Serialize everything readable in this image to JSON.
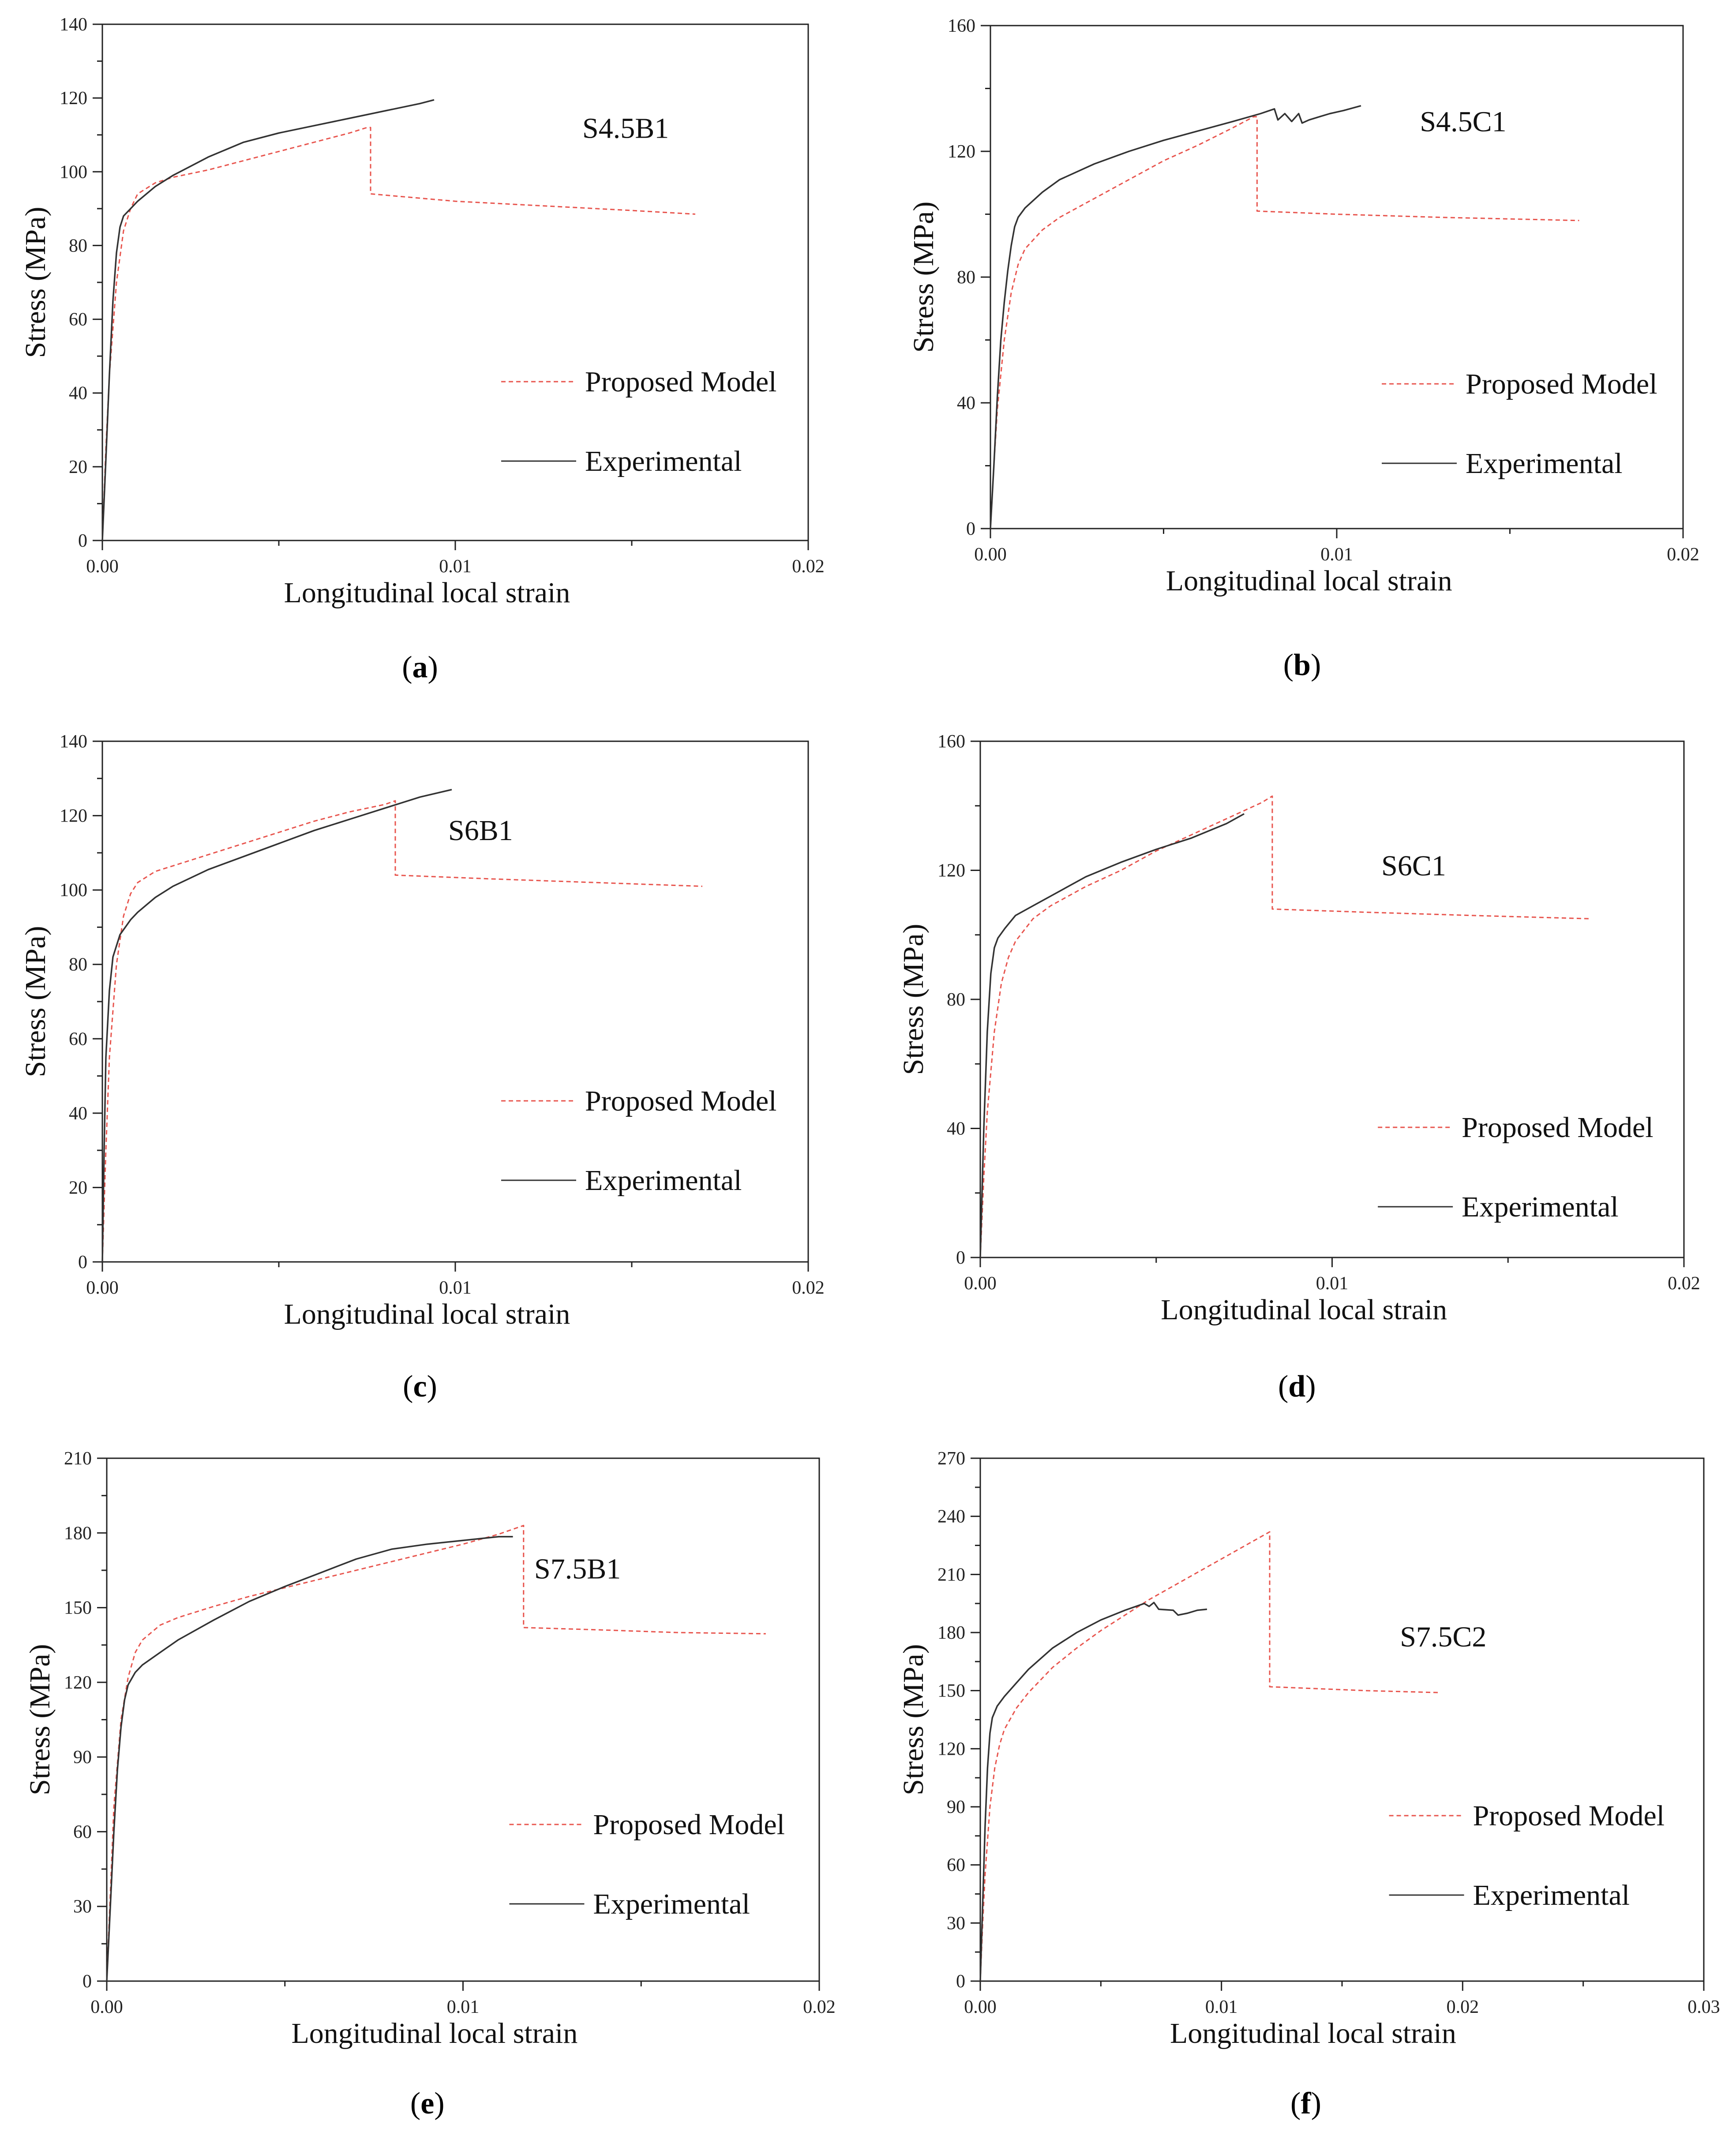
{
  "chart_data": [
    {
      "type": "line",
      "panel": "(a)",
      "caption_letter": "a",
      "annotation": "S4.5B1",
      "xlabel": "Longitudinal local strain",
      "ylabel": "Stress (MPa)",
      "xlim": [
        0,
        0.02
      ],
      "ylim": [
        0,
        140
      ],
      "xticks": [
        0,
        0.01,
        0.02
      ],
      "xtick_labels": [
        "0.00",
        "0.01",
        "0.02"
      ],
      "yticks": [
        0,
        20,
        40,
        60,
        80,
        100,
        120,
        140
      ],
      "ytick_labels": [
        "0",
        "20",
        "40",
        "60",
        "80",
        "100",
        "120",
        "140"
      ],
      "legend": [
        "Proposed Model",
        "Experimental"
      ],
      "series": [
        {
          "name": "Proposed Model",
          "color": "#e8554e",
          "style": "dashed",
          "x": [
            0,
            0.0001,
            0.0002,
            0.0004,
            0.0006,
            0.0008,
            0.001,
            0.0015,
            0.002,
            0.003,
            0.004,
            0.005,
            0.006,
            0.007,
            0.0075,
            0.0076,
            0.0076,
            0.01,
            0.012,
            0.015,
            0.0168
          ],
          "y": [
            0,
            25,
            45,
            70,
            84,
            90,
            94,
            97,
            98.5,
            100.5,
            103,
            105.5,
            108,
            110.5,
            112,
            112,
            94,
            92,
            91,
            89.5,
            88.5
          ]
        },
        {
          "name": "Experimental",
          "color": "#333333",
          "style": "solid",
          "x": [
            0,
            0.0001,
            0.0002,
            0.0003,
            0.0004,
            0.0005,
            0.0006,
            0.0008,
            0.001,
            0.0015,
            0.002,
            0.0025,
            0.003,
            0.004,
            0.005,
            0.006,
            0.007,
            0.008,
            0.009,
            0.0094
          ],
          "y": [
            0,
            22,
            45,
            65,
            78,
            85,
            88,
            90,
            92,
            96,
            99,
            101.5,
            104,
            108,
            110.5,
            112.5,
            114.5,
            116.5,
            118.5,
            119.5
          ]
        }
      ]
    },
    {
      "type": "line",
      "panel": "(b)",
      "caption_letter": "b",
      "annotation": "S4.5C1",
      "xlabel": "Longitudinal local strain",
      "ylabel": "Stress (MPa)",
      "xlim": [
        0,
        0.02
      ],
      "ylim": [
        0,
        160
      ],
      "xticks": [
        0,
        0.01,
        0.02
      ],
      "xtick_labels": [
        "0.00",
        "0.01",
        "0.02"
      ],
      "yticks": [
        0,
        40,
        80,
        120,
        160
      ],
      "ytick_labels": [
        "0",
        "40",
        "80",
        "120",
        "160"
      ],
      "legend": [
        "Proposed Model",
        "Experimental"
      ],
      "series": [
        {
          "name": "Proposed Model",
          "color": "#e8554e",
          "style": "dashed",
          "x": [
            0,
            0.0001,
            0.0002,
            0.0004,
            0.0006,
            0.0008,
            0.001,
            0.0015,
            0.002,
            0.003,
            0.004,
            0.005,
            0.006,
            0.007,
            0.0076,
            0.0077,
            0.0077,
            0.01,
            0.013,
            0.017
          ],
          "y": [
            0,
            20,
            38,
            60,
            75,
            84,
            89,
            95,
            99,
            105,
            111,
            117,
            122,
            127.5,
            131,
            131,
            101,
            100,
            99,
            98
          ]
        },
        {
          "name": "Experimental",
          "color": "#333333",
          "style": "solid",
          "x": [
            0,
            0.0001,
            0.0002,
            0.0003,
            0.0004,
            0.0005,
            0.0006,
            0.0007,
            0.0008,
            0.001,
            0.0015,
            0.002,
            0.003,
            0.004,
            0.005,
            0.006,
            0.007,
            0.0078,
            0.0082,
            0.0083,
            0.0085,
            0.0087,
            0.0089,
            0.009,
            0.0092,
            0.0095,
            0.0098,
            0.0102,
            0.0107
          ],
          "y": [
            0,
            20,
            42,
            60,
            72,
            82,
            90,
            96,
            99,
            102,
            107,
            111,
            116,
            120,
            123.5,
            126.5,
            129.5,
            132,
            133.5,
            130,
            132,
            129.5,
            132,
            129,
            130,
            131,
            132,
            133,
            134.5
          ]
        }
      ]
    },
    {
      "type": "line",
      "panel": "(c)",
      "caption_letter": "c",
      "annotation": "S6B1",
      "xlabel": "Longitudinal local strain",
      "ylabel": "Stress (MPa)",
      "xlim": [
        0,
        0.02
      ],
      "ylim": [
        0,
        140
      ],
      "xticks": [
        0,
        0.01,
        0.02
      ],
      "xtick_labels": [
        "0.00",
        "0.01",
        "0.02"
      ],
      "yticks": [
        0,
        20,
        40,
        60,
        80,
        100,
        120,
        140
      ],
      "ytick_labels": [
        "0",
        "20",
        "40",
        "60",
        "80",
        "100",
        "120",
        "140"
      ],
      "legend": [
        "Proposed Model",
        "Experimental"
      ],
      "series": [
        {
          "name": "Proposed Model",
          "color": "#e8554e",
          "style": "dashed",
          "x": [
            0,
            0.0001,
            0.0002,
            0.0004,
            0.0006,
            0.0008,
            0.001,
            0.0015,
            0.002,
            0.003,
            0.004,
            0.005,
            0.006,
            0.007,
            0.008,
            0.0083,
            0.0083,
            0.011,
            0.014,
            0.017
          ],
          "y": [
            0,
            30,
            55,
            80,
            93,
            99,
            102,
            105,
            106.5,
            109.5,
            112.5,
            115.5,
            118.5,
            121,
            123,
            124,
            104,
            103,
            102,
            101
          ]
        },
        {
          "name": "Experimental",
          "color": "#333333",
          "style": "solid",
          "x": [
            0,
            5e-05,
            0.0001,
            0.0002,
            0.0003,
            0.0005,
            0.0008,
            0.001,
            0.0015,
            0.002,
            0.003,
            0.004,
            0.005,
            0.006,
            0.007,
            0.008,
            0.009,
            0.0099
          ],
          "y": [
            0,
            30,
            55,
            73,
            82,
            88,
            92,
            94,
            98,
            101,
            105.5,
            109,
            112.5,
            116,
            119,
            122,
            125,
            127
          ]
        }
      ]
    },
    {
      "type": "line",
      "panel": "(d)",
      "caption_letter": "d",
      "annotation": "S6C1",
      "xlabel": "Longitudinal local strain",
      "ylabel": "Stress (MPa)",
      "xlim": [
        0,
        0.02
      ],
      "ylim": [
        0,
        160
      ],
      "xticks": [
        0,
        0.01,
        0.02
      ],
      "xtick_labels": [
        "0.00",
        "0.01",
        "0.02"
      ],
      "yticks": [
        0,
        40,
        80,
        120,
        160
      ],
      "ytick_labels": [
        "0",
        "40",
        "80",
        "120",
        "160"
      ],
      "legend": [
        "Proposed Model",
        "Experimental"
      ],
      "series": [
        {
          "name": "Proposed Model",
          "color": "#e8554e",
          "style": "dashed",
          "x": [
            0,
            0.0001,
            0.0002,
            0.0004,
            0.0006,
            0.0008,
            0.001,
            0.0015,
            0.002,
            0.003,
            0.004,
            0.005,
            0.006,
            0.007,
            0.008,
            0.0083,
            0.0083,
            0.011,
            0.014,
            0.0173
          ],
          "y": [
            0,
            25,
            45,
            70,
            85,
            93,
            98,
            105,
            109,
            115,
            120,
            126,
            131,
            136,
            141,
            143,
            108,
            107,
            106,
            105
          ]
        },
        {
          "name": "Experimental",
          "color": "#333333",
          "style": "solid",
          "x": [
            0,
            0.0001,
            0.0002,
            0.0003,
            0.0004,
            0.0005,
            0.0007,
            0.001,
            0.0015,
            0.002,
            0.003,
            0.004,
            0.005,
            0.006,
            0.007,
            0.0075
          ],
          "y": [
            0,
            40,
            70,
            88,
            96,
            99,
            102,
            106,
            109,
            112,
            118,
            122.5,
            126.5,
            130,
            134.5,
            137.5
          ]
        }
      ]
    },
    {
      "type": "line",
      "panel": "(e)",
      "caption_letter": "e",
      "annotation": "S7.5B1",
      "xlabel": "Longitudinal local strain",
      "ylabel": "Stress (MPa)",
      "xlim": [
        0,
        0.02
      ],
      "ylim": [
        0,
        210
      ],
      "xticks": [
        0,
        0.01,
        0.02
      ],
      "xtick_labels": [
        "0.00",
        "0.01",
        "0.02"
      ],
      "yticks": [
        0,
        30,
        60,
        90,
        120,
        150,
        180,
        210
      ],
      "ytick_labels": [
        "0",
        "30",
        "60",
        "90",
        "120",
        "150",
        "180",
        "210"
      ],
      "legend": [
        "Proposed Model",
        "Experimental"
      ],
      "series": [
        {
          "name": "Proposed Model",
          "color": "#e8554e",
          "style": "dashed",
          "x": [
            0,
            0.0001,
            0.0002,
            0.0004,
            0.0006,
            0.0008,
            0.001,
            0.0015,
            0.002,
            0.003,
            0.004,
            0.005,
            0.006,
            0.007,
            0.008,
            0.009,
            0.01,
            0.011,
            0.0117,
            0.0117,
            0.014,
            0.016,
            0.0185
          ],
          "y": [
            0,
            35,
            70,
            105,
            122,
            132,
            137,
            143,
            146,
            150.5,
            154.5,
            158,
            161.5,
            165,
            168.5,
            172,
            175.5,
            179.5,
            183,
            142,
            141,
            140,
            139.5
          ]
        },
        {
          "name": "Experimental",
          "color": "#333333",
          "style": "solid",
          "x": [
            0,
            0.0001,
            0.0002,
            0.0003,
            0.0004,
            0.0005,
            0.0006,
            0.0008,
            0.001,
            0.0015,
            0.002,
            0.003,
            0.004,
            0.005,
            0.006,
            0.007,
            0.008,
            0.009,
            0.01,
            0.011,
            0.0114
          ],
          "y": [
            0,
            30,
            60,
            85,
            102,
            113,
            119,
            124,
            127,
            132,
            137,
            145,
            152.5,
            158.5,
            164,
            169.5,
            173.5,
            175.5,
            177,
            178.5,
            178.5
          ]
        }
      ]
    },
    {
      "type": "line",
      "panel": "(f)",
      "caption_letter": "f",
      "annotation": "S7.5C2",
      "xlabel": "Longitudinal local strain",
      "ylabel": "Stress (MPa)",
      "xlim": [
        0,
        0.03
      ],
      "ylim": [
        0,
        270
      ],
      "xticks": [
        0,
        0.01,
        0.02,
        0.03
      ],
      "xtick_labels": [
        "0.00",
        "0.01",
        "0.02",
        "0.03"
      ],
      "yticks": [
        0,
        30,
        60,
        90,
        120,
        150,
        180,
        210,
        240,
        270
      ],
      "ytick_labels": [
        "0",
        "30",
        "60",
        "90",
        "120",
        "150",
        "180",
        "210",
        "240",
        "270"
      ],
      "legend": [
        "Proposed Model",
        "Experimental"
      ],
      "series": [
        {
          "name": "Proposed Model",
          "color": "#e8554e",
          "style": "dashed",
          "x": [
            0,
            0.0001,
            0.0002,
            0.0004,
            0.0006,
            0.0008,
            0.001,
            0.0015,
            0.002,
            0.003,
            0.004,
            0.005,
            0.006,
            0.007,
            0.008,
            0.009,
            0.01,
            0.011,
            0.012,
            0.012,
            0.014,
            0.016,
            0.019
          ],
          "y": [
            0,
            30,
            55,
            90,
            110,
            122,
            130,
            141,
            149,
            162,
            172,
            181,
            189,
            197,
            204,
            211,
            218,
            225,
            232,
            152,
            151,
            150,
            149
          ]
        },
        {
          "name": "Experimental",
          "color": "#333333",
          "style": "solid",
          "x": [
            0,
            0.0001,
            0.0002,
            0.0003,
            0.0004,
            0.0005,
            0.0007,
            0.001,
            0.0015,
            0.002,
            0.003,
            0.004,
            0.005,
            0.006,
            0.0068,
            0.007,
            0.0072,
            0.0074,
            0.008,
            0.0082,
            0.0086,
            0.009,
            0.0094
          ],
          "y": [
            0,
            40,
            80,
            110,
            128,
            136,
            142,
            147,
            154,
            161,
            172,
            180,
            186.5,
            191.5,
            195,
            193.5,
            195.5,
            192,
            191.5,
            189,
            190,
            191.5,
            192
          ]
        }
      ]
    }
  ]
}
